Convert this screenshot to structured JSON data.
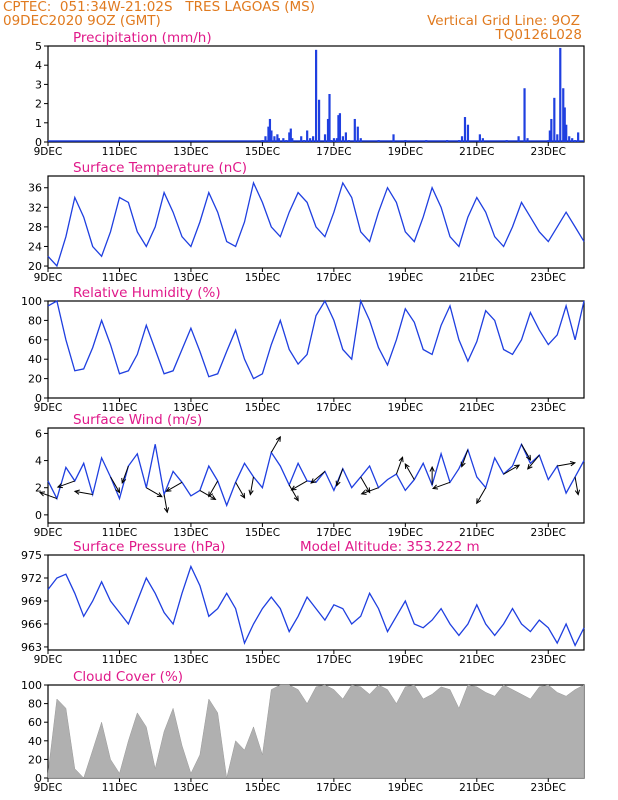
{
  "header": {
    "line1": "CPTEC:  051:34W-21:02S   TRES LAGOAS (MS)",
    "line2": "09DEC2020 9OZ (GMT)",
    "vgrid": "Vertical Grid Line: 9OZ",
    "code": "TQ0126L028"
  },
  "colors": {
    "header": "#e07a1f",
    "title": "#e0198a",
    "line": "#1f3fe0",
    "bar": "#1f3fe0",
    "cloud": "#b0b0b0"
  },
  "chart_data": [
    {
      "id": "precip",
      "type": "bar",
      "title": "Precipitation (mm/h)",
      "ylim": [
        0,
        5
      ],
      "yticks": [
        0,
        1,
        2,
        3,
        4,
        5
      ],
      "x_days": [
        "9DEC",
        "11DEC",
        "13DEC",
        "15DEC",
        "17DEC",
        "19DEC",
        "21DEC",
        "23DEC"
      ],
      "x_start": "09DEC2020 00Z",
      "hours": 360,
      "bars_hour": [
        144,
        146,
        148,
        149,
        150,
        152,
        154,
        155,
        158,
        160,
        162,
        163,
        164,
        170,
        172,
        174,
        176,
        178,
        180,
        182,
        186,
        188,
        189,
        190,
        192,
        194,
        195,
        196,
        198,
        200,
        202,
        206,
        208,
        210,
        222,
        232,
        240,
        254,
        268,
        276,
        278,
        280,
        282,
        290,
        292,
        308,
        316,
        320,
        322,
        336,
        337,
        338,
        340,
        342,
        344,
        346,
        347,
        348,
        350,
        352,
        354,
        356
      ],
      "bars_value": [
        0.1,
        0.3,
        0.8,
        1.2,
        0.6,
        0.3,
        0.4,
        0.2,
        0.2,
        0.1,
        0.5,
        0.7,
        0.2,
        0.3,
        0.1,
        0.6,
        0.2,
        0.3,
        4.8,
        2.2,
        0.4,
        1.2,
        2.5,
        0.1,
        0.2,
        0.2,
        1.4,
        1.5,
        0.3,
        0.5,
        0.1,
        1.2,
        0.8,
        0.2,
        0.1,
        0.4,
        0.1,
        0.1,
        0.1,
        0.1,
        0.3,
        1.3,
        0.9,
        0.4,
        0.2,
        0.1,
        0.3,
        2.8,
        0.2,
        0.1,
        0.6,
        1.2,
        2.3,
        0.4,
        4.9,
        2.8,
        1.8,
        0.9,
        0.3,
        0.2,
        0.1,
        0.5
      ]
    },
    {
      "id": "temp",
      "type": "line",
      "title": "Surface Temperature (nC)",
      "ylim": [
        19.6,
        38.4
      ],
      "yticks": [
        20,
        24,
        28,
        32,
        36
      ],
      "x_days": [
        "9DEC",
        "11DEC",
        "13DEC",
        "15DEC",
        "17DEC",
        "19DEC",
        "21DEC",
        "23DEC"
      ],
      "x_start": "09DEC2020 00Z",
      "hours": 360,
      "x_hours": [
        0,
        6,
        12,
        18,
        24,
        30,
        36,
        42,
        48,
        54,
        60,
        66,
        72,
        78,
        84,
        90,
        96,
        102,
        108,
        114,
        120,
        126,
        132,
        138,
        144,
        150,
        156,
        162,
        168,
        174,
        180,
        186,
        192,
        198,
        204,
        210,
        216,
        222,
        228,
        234,
        240,
        246,
        252,
        258,
        264,
        270,
        276,
        282,
        288,
        294,
        300,
        306,
        312,
        318,
        324,
        330,
        336,
        342,
        348,
        354,
        360
      ],
      "y": [
        22,
        20,
        26,
        34,
        30,
        24,
        22,
        27,
        34,
        33,
        27,
        24,
        28,
        35,
        31,
        26,
        24,
        29,
        35,
        31,
        25,
        24,
        29,
        37,
        33,
        28,
        26,
        31,
        35,
        33,
        28,
        26,
        31,
        37,
        34,
        27,
        25,
        31,
        36,
        33,
        27,
        25,
        30,
        36,
        32,
        26,
        24,
        30,
        34,
        31,
        26,
        24,
        28,
        33,
        30,
        27,
        25,
        28,
        31,
        28,
        25
      ]
    },
    {
      "id": "rh",
      "type": "line",
      "title": "Relative Humidity (%)",
      "ylim": [
        0,
        100
      ],
      "yticks": [
        0,
        20,
        40,
        60,
        80,
        100
      ],
      "x_days": [
        "9DEC",
        "11DEC",
        "13DEC",
        "15DEC",
        "17DEC",
        "19DEC",
        "21DEC",
        "23DEC"
      ],
      "x_start": "09DEC2020 00Z",
      "hours": 360,
      "x_hours": [
        0,
        6,
        12,
        18,
        24,
        30,
        36,
        42,
        48,
        54,
        60,
        66,
        72,
        78,
        84,
        90,
        96,
        102,
        108,
        114,
        120,
        126,
        132,
        138,
        144,
        150,
        156,
        162,
        168,
        174,
        180,
        186,
        192,
        198,
        204,
        210,
        216,
        222,
        228,
        234,
        240,
        246,
        252,
        258,
        264,
        270,
        276,
        282,
        288,
        294,
        300,
        306,
        312,
        318,
        324,
        330,
        336,
        342,
        348,
        354,
        360
      ],
      "y": [
        95,
        100,
        60,
        28,
        30,
        52,
        80,
        55,
        25,
        28,
        45,
        75,
        50,
        25,
        28,
        50,
        72,
        48,
        22,
        25,
        48,
        70,
        40,
        20,
        25,
        55,
        80,
        50,
        35,
        45,
        85,
        100,
        80,
        50,
        40,
        100,
        80,
        52,
        34,
        60,
        92,
        78,
        50,
        45,
        75,
        95,
        60,
        38,
        58,
        90,
        80,
        50,
        45,
        60,
        88,
        70,
        55,
        65,
        95,
        60,
        100
      ]
    },
    {
      "id": "wind",
      "type": "line",
      "title": "Surface Wind (m/s)",
      "ylim": [
        -0.6,
        6.4
      ],
      "yticks": [
        0,
        2,
        4,
        6
      ],
      "x_days": [
        "9DEC",
        "11DEC",
        "13DEC",
        "15DEC",
        "17DEC",
        "19DEC",
        "21DEC",
        "23DEC"
      ],
      "x_start": "09DEC2020 00Z",
      "hours": 360,
      "x_hours": [
        0,
        6,
        12,
        18,
        24,
        30,
        36,
        42,
        48,
        54,
        60,
        66,
        72,
        78,
        84,
        90,
        96,
        102,
        108,
        114,
        120,
        126,
        132,
        138,
        144,
        150,
        156,
        162,
        168,
        174,
        180,
        186,
        192,
        198,
        204,
        210,
        216,
        222,
        228,
        234,
        240,
        246,
        252,
        258,
        264,
        270,
        276,
        282,
        288,
        294,
        300,
        306,
        312,
        318,
        324,
        330,
        336,
        342,
        348,
        354,
        360
      ],
      "y": [
        2.5,
        1.2,
        3.5,
        2.5,
        3.8,
        1.5,
        4.2,
        2.8,
        1.2,
        3.6,
        4.5,
        2.0,
        5.2,
        1.5,
        3.2,
        2.4,
        1.4,
        1.8,
        3.6,
        2.5,
        0.7,
        2.4,
        3.8,
        2.8,
        2.0,
        4.6,
        3.6,
        2.2,
        3.8,
        2.5,
        2.4,
        3.2,
        1.8,
        3.4,
        2.0,
        2.8,
        3.6,
        2.0,
        2.6,
        3.0,
        1.8,
        2.6,
        3.8,
        2.2,
        4.5,
        2.4,
        3.4,
        4.8,
        2.8,
        2.0,
        4.2,
        3.0,
        3.6,
        5.2,
        3.8,
        4.4,
        2.6,
        3.6,
        1.6,
        2.8,
        4.0
      ],
      "arrows_hour": [
        6,
        18,
        30,
        42,
        54,
        66,
        78,
        90,
        102,
        114,
        126,
        138,
        150,
        162,
        174,
        186,
        198,
        210,
        222,
        234,
        246,
        258,
        270,
        282,
        294,
        306,
        318,
        330,
        342,
        354
      ],
      "arrows_dir_deg": [
        160,
        200,
        170,
        300,
        250,
        330,
        280,
        210,
        330,
        240,
        300,
        260,
        60,
        300,
        210,
        220,
        250,
        300,
        200,
        70,
        120,
        90,
        200,
        250,
        240,
        30,
        300,
        230,
        10,
        280
      ]
    },
    {
      "id": "pres",
      "type": "line",
      "title": "Surface Pressure (hPa)",
      "annotation": "Model Altitude: 353.222 m",
      "ylim": [
        962.6,
        975
      ],
      "yticks": [
        963,
        966,
        969,
        972,
        975
      ],
      "x_days": [
        "9DEC",
        "11DEC",
        "13DEC",
        "15DEC",
        "17DEC",
        "19DEC",
        "21DEC",
        "23DEC"
      ],
      "x_start": "09DEC2020 00Z",
      "hours": 360,
      "x_hours": [
        0,
        6,
        12,
        18,
        24,
        30,
        36,
        42,
        48,
        54,
        60,
        66,
        72,
        78,
        84,
        90,
        96,
        102,
        108,
        114,
        120,
        126,
        132,
        138,
        144,
        150,
        156,
        162,
        168,
        174,
        180,
        186,
        192,
        198,
        204,
        210,
        216,
        222,
        228,
        234,
        240,
        246,
        252,
        258,
        264,
        270,
        276,
        282,
        288,
        294,
        300,
        306,
        312,
        318,
        324,
        330,
        336,
        342,
        348,
        354,
        360
      ],
      "y": [
        970.5,
        972,
        972.5,
        970,
        967,
        969,
        971.5,
        969,
        967.5,
        966,
        969,
        972,
        970,
        967.5,
        966,
        970,
        973.5,
        971,
        967,
        968,
        970,
        968,
        963.5,
        966,
        968,
        969.5,
        968,
        965,
        967,
        969.5,
        968,
        966.5,
        968.5,
        968,
        966,
        967,
        970,
        968,
        965,
        967,
        969,
        966,
        965.5,
        966.5,
        968,
        966,
        964.5,
        966,
        968.5,
        966,
        964.5,
        966,
        968,
        966,
        965,
        966.5,
        965.5,
        963.5,
        966,
        963.2,
        965.5
      ]
    },
    {
      "id": "cloud",
      "type": "area",
      "title": "Cloud Cover (%)",
      "ylim": [
        0,
        100
      ],
      "yticks": [
        0,
        20,
        40,
        60,
        80,
        100
      ],
      "x_days": [
        "9DEC",
        "11DEC",
        "13DEC",
        "15DEC",
        "17DEC",
        "19DEC",
        "21DEC",
        "23DEC"
      ],
      "x_start": "09DEC2020 00Z",
      "hours": 360,
      "x_hours": [
        0,
        6,
        12,
        18,
        24,
        30,
        36,
        42,
        48,
        54,
        60,
        66,
        72,
        78,
        84,
        90,
        96,
        102,
        108,
        114,
        120,
        126,
        132,
        138,
        144,
        150,
        156,
        162,
        168,
        174,
        180,
        186,
        192,
        198,
        204,
        210,
        216,
        222,
        228,
        234,
        240,
        246,
        252,
        258,
        264,
        270,
        276,
        282,
        288,
        294,
        300,
        306,
        312,
        318,
        324,
        330,
        336,
        342,
        348,
        354,
        360
      ],
      "y": [
        5,
        85,
        75,
        10,
        0,
        30,
        60,
        20,
        5,
        40,
        70,
        55,
        10,
        50,
        75,
        35,
        5,
        25,
        85,
        70,
        0,
        40,
        30,
        55,
        25,
        95,
        100,
        100,
        95,
        80,
        98,
        100,
        95,
        85,
        100,
        98,
        90,
        100,
        95,
        80,
        98,
        100,
        85,
        90,
        98,
        95,
        75,
        100,
        98,
        92,
        88,
        100,
        95,
        90,
        85,
        98,
        100,
        92,
        88,
        95,
        100
      ]
    }
  ]
}
